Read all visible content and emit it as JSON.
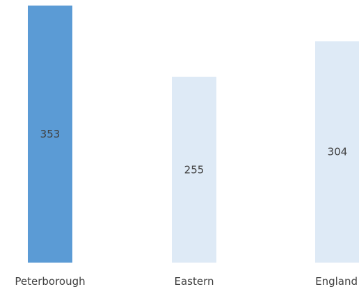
{
  "chart_data": {
    "type": "bar",
    "title": "",
    "xlabel": "",
    "ylabel": "",
    "categories": [
      "Peterborough",
      "Eastern",
      "England"
    ],
    "values": [
      353,
      255,
      304
    ],
    "value_labels": [
      "353",
      "255",
      "304"
    ],
    "ylim": [
      0,
      353
    ],
    "grid": false,
    "legend": "none",
    "colors": {
      "highlight": "#5b9bd5",
      "default": "#deeaf6",
      "text": "#404040"
    },
    "highlight_index": 0
  }
}
